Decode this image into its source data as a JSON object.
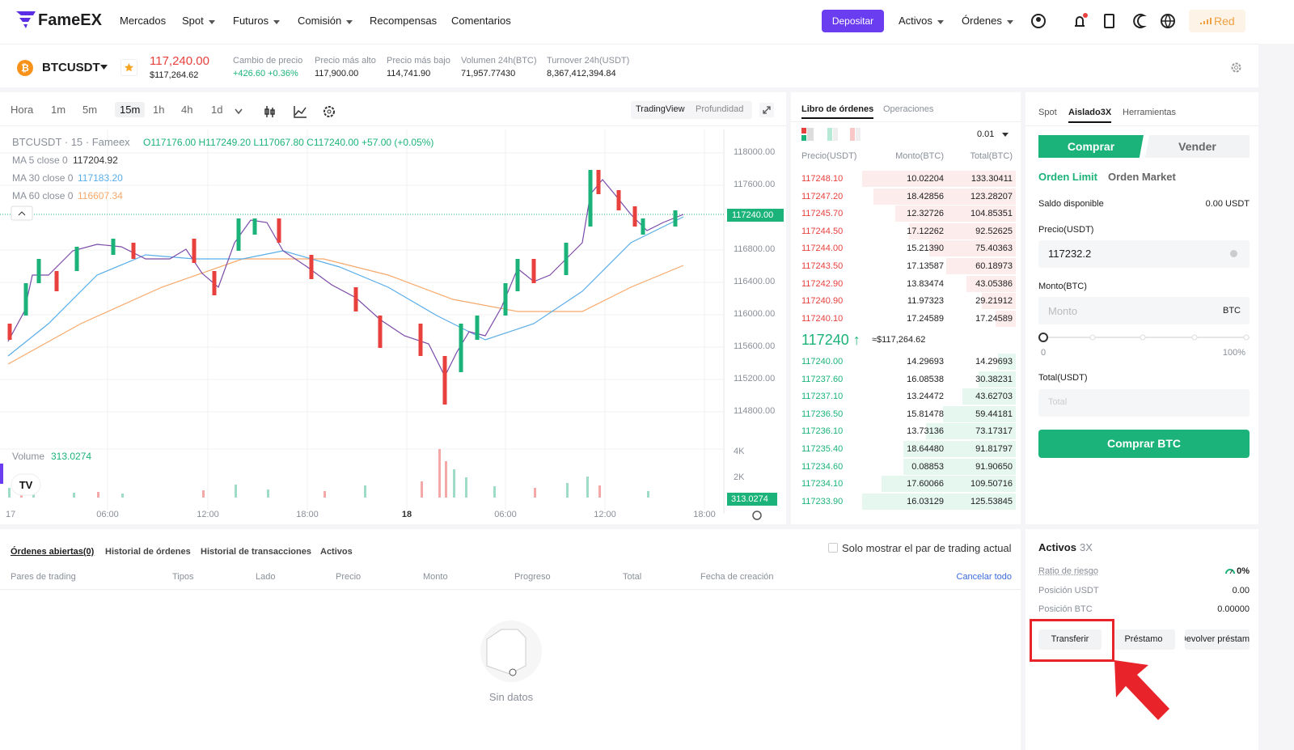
{
  "header": {
    "logo": "FameEX",
    "nav": [
      "Mercados",
      "Spot",
      "Futuros",
      "Comisión",
      "Recompensas",
      "Comentarios"
    ],
    "deposit": "Depositar",
    "right_menu": [
      "Activos",
      "Órdenes"
    ],
    "network": "Red"
  },
  "ticker": {
    "symbol": "BTCUSDT",
    "price": "117,240.00",
    "price_usd": "$117,264.62",
    "stats": [
      {
        "label": "Cambio de precio",
        "value": "+426.60 +0.36%"
      },
      {
        "label": "Precio más alto",
        "value": "117,900.00"
      },
      {
        "label": "Precio más bajo",
        "value": "114,741.90"
      },
      {
        "label": "Volumen 24h(BTC)",
        "value": "71,957.77430"
      },
      {
        "label": "Turnover 24h(USDT)",
        "value": "8,367,412,394.84"
      }
    ]
  },
  "chart": {
    "intervals": [
      "Hora",
      "1m",
      "5m",
      "15m",
      "1h",
      "4h",
      "1d"
    ],
    "views": [
      "TradingView",
      "Profundidad"
    ],
    "legend_title": "BTCUSDT · 15 · Fameex",
    "ohlc": "O117176.00 H117249.20 L117067.80 C117240.00 +57.00 (+0.05%)",
    "ma": [
      {
        "label": "MA 5 close 0",
        "value": "117204.92"
      },
      {
        "label": "MA 30 close 0",
        "value": "117183.20"
      },
      {
        "label": "MA 60 close 0",
        "value": "116607.34"
      }
    ],
    "price_axis": [
      "118000.00",
      "117600.00",
      "116800.00",
      "116400.00",
      "116000.00",
      "115600.00",
      "115200.00",
      "114800.00"
    ],
    "current_price": "117240.00",
    "volume_label": "Volume",
    "volume_value": "313.0274",
    "volume_axis": [
      "4K",
      "2K"
    ],
    "time_axis": [
      "17",
      "06:00",
      "12:00",
      "18:00",
      "18",
      "06:00",
      "12:00",
      "18:00"
    ]
  },
  "orderbook": {
    "tabs": [
      "Libro de órdenes",
      "Operaciones"
    ],
    "precision": "0.01",
    "headers": [
      "Precio(USDT)",
      "Monto(BTC)",
      "Total(BTC)"
    ],
    "asks": [
      [
        "117248.10",
        "10.02204",
        "133.30411"
      ],
      [
        "117247.20",
        "18.42856",
        "123.28207"
      ],
      [
        "117245.70",
        "12.32726",
        "104.85351"
      ],
      [
        "117244.50",
        "17.12262",
        "92.52625"
      ],
      [
        "117244.00",
        "15.21390",
        "75.40363"
      ],
      [
        "117243.50",
        "17.13587",
        "60.18973"
      ],
      [
        "117242.90",
        "13.83474",
        "43.05386"
      ],
      [
        "117240.90",
        "11.97323",
        "29.21912"
      ],
      [
        "117240.10",
        "17.24589",
        "17.24589"
      ]
    ],
    "mid_price": "117240 ↑",
    "mid_usd": "≈$117,264.62",
    "bids": [
      [
        "117240.00",
        "14.29693",
        "14.29693"
      ],
      [
        "117237.60",
        "16.08538",
        "30.38231"
      ],
      [
        "117237.10",
        "13.24472",
        "43.62703"
      ],
      [
        "117236.50",
        "15.81478",
        "59.44181"
      ],
      [
        "117236.10",
        "13.73136",
        "73.17317"
      ],
      [
        "117235.40",
        "18.64480",
        "91.81797"
      ],
      [
        "117234.60",
        "0.08853",
        "91.90650"
      ],
      [
        "117234.10",
        "17.60066",
        "109.50716"
      ],
      [
        "117233.90",
        "16.03129",
        "125.53845"
      ]
    ]
  },
  "trade": {
    "tabs": [
      "Spot",
      "Aislado3X",
      "Herramientas"
    ],
    "buy": "Comprar",
    "sell": "Vender",
    "order_types": [
      "Orden Limit",
      "Orden Market"
    ],
    "balance_label": "Saldo disponible",
    "balance_value": "0.00 USDT",
    "price_label": "Precio(USDT)",
    "price_value": "117232.2",
    "amount_label": "Monto(BTC)",
    "amount_placeholder": "Monto",
    "amount_unit": "BTC",
    "slider_min": "0",
    "slider_max": "100%",
    "total_label": "Total(USDT)",
    "total_placeholder": "Total",
    "submit": "Comprar BTC"
  },
  "orders": {
    "tabs": [
      "Órdenes abiertas(0)",
      "Historial de órdenes",
      "Historial de transacciones",
      "Activos"
    ],
    "filter": "Solo mostrar el par de trading actual",
    "columns": [
      "Pares de trading",
      "Tipos",
      "Lado",
      "Precio",
      "Monto",
      "Progreso",
      "Total",
      "Fecha de creación"
    ],
    "cancel_all": "Cancelar todo",
    "empty": "Sin datos"
  },
  "assets": {
    "title": "Activos",
    "leverage": "3X",
    "rows": [
      {
        "label": "Ratio de riesgo",
        "value": "0%"
      },
      {
        "label": "Posición USDT",
        "value": "0.00"
      },
      {
        "label": "Posición BTC",
        "value": "0.00000"
      }
    ],
    "buttons": [
      "Transferir",
      "Préstamo",
      "Devolver préstamo"
    ]
  }
}
